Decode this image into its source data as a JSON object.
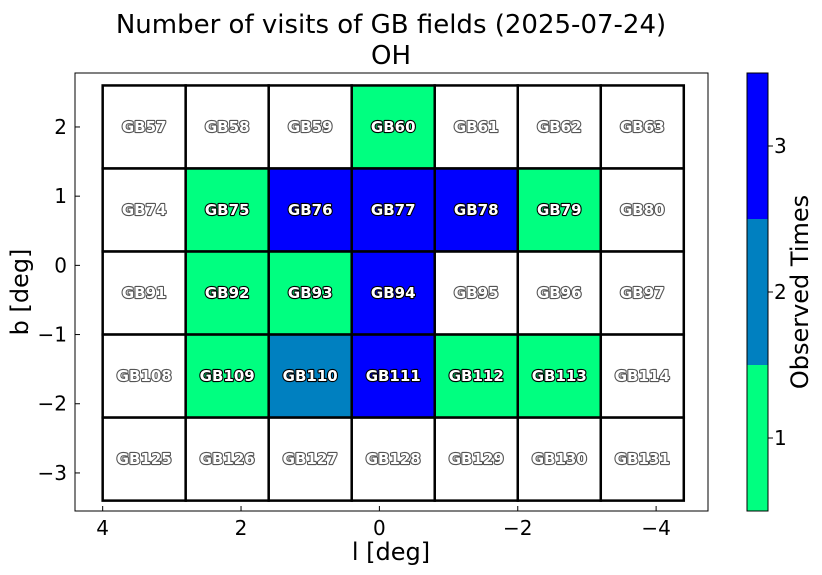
{
  "chart_data": {
    "type": "heatmap",
    "title": "Number of visits of GB fields (2025-07-24)",
    "subtitle": "OH",
    "xlabel": "l [deg]",
    "ylabel": "b [deg]",
    "xlim": [
      4.4,
      -4.75
    ],
    "ylim": [
      -3.55,
      2.78
    ],
    "x_reversed": true,
    "xticks": [
      4,
      2,
      0,
      -2,
      -4
    ],
    "xtick_labels": [
      "4",
      "2",
      "0",
      "−2",
      "−4"
    ],
    "yticks": [
      2,
      1,
      0,
      -1,
      -2,
      -3
    ],
    "ytick_labels": [
      "2",
      "1",
      "0",
      "−1",
      "−2",
      "−3"
    ],
    "grid": {
      "columns_l": [
        3.4,
        2.2,
        1.0,
        -0.2,
        -1.4,
        -2.6,
        -3.8
      ],
      "rows_b": [
        2.0,
        0.8,
        -0.4,
        -1.6,
        -2.8
      ],
      "cell_width_deg": 1.2,
      "cell_height_deg": 1.2
    },
    "fields": [
      {
        "name": "GB57",
        "l": 3.4,
        "b": 2.0,
        "visits": 0
      },
      {
        "name": "GB58",
        "l": 2.2,
        "b": 2.0,
        "visits": 0
      },
      {
        "name": "GB59",
        "l": 1.0,
        "b": 2.0,
        "visits": 0
      },
      {
        "name": "GB60",
        "l": -0.2,
        "b": 2.0,
        "visits": 1
      },
      {
        "name": "GB61",
        "l": -1.4,
        "b": 2.0,
        "visits": 0
      },
      {
        "name": "GB62",
        "l": -2.6,
        "b": 2.0,
        "visits": 0
      },
      {
        "name": "GB63",
        "l": -3.8,
        "b": 2.0,
        "visits": 0
      },
      {
        "name": "GB74",
        "l": 3.4,
        "b": 0.8,
        "visits": 0
      },
      {
        "name": "GB75",
        "l": 2.2,
        "b": 0.8,
        "visits": 1
      },
      {
        "name": "GB76",
        "l": 1.0,
        "b": 0.8,
        "visits": 3
      },
      {
        "name": "GB77",
        "l": -0.2,
        "b": 0.8,
        "visits": 3
      },
      {
        "name": "GB78",
        "l": -1.4,
        "b": 0.8,
        "visits": 3
      },
      {
        "name": "GB79",
        "l": -2.6,
        "b": 0.8,
        "visits": 1
      },
      {
        "name": "GB80",
        "l": -3.8,
        "b": 0.8,
        "visits": 0
      },
      {
        "name": "GB91",
        "l": 3.4,
        "b": -0.4,
        "visits": 0
      },
      {
        "name": "GB92",
        "l": 2.2,
        "b": -0.4,
        "visits": 1
      },
      {
        "name": "GB93",
        "l": 1.0,
        "b": -0.4,
        "visits": 1
      },
      {
        "name": "GB94",
        "l": -0.2,
        "b": -0.4,
        "visits": 3
      },
      {
        "name": "GB95",
        "l": -1.4,
        "b": -0.4,
        "visits": 0
      },
      {
        "name": "GB96",
        "l": -2.6,
        "b": -0.4,
        "visits": 0
      },
      {
        "name": "GB97",
        "l": -3.8,
        "b": -0.4,
        "visits": 0
      },
      {
        "name": "GB108",
        "l": 3.4,
        "b": -1.6,
        "visits": 0
      },
      {
        "name": "GB109",
        "l": 2.2,
        "b": -1.6,
        "visits": 1
      },
      {
        "name": "GB110",
        "l": 1.0,
        "b": -1.6,
        "visits": 2
      },
      {
        "name": "GB111",
        "l": -0.2,
        "b": -1.6,
        "visits": 3
      },
      {
        "name": "GB112",
        "l": -1.4,
        "b": -1.6,
        "visits": 1
      },
      {
        "name": "GB113",
        "l": -2.6,
        "b": -1.6,
        "visits": 1
      },
      {
        "name": "GB114",
        "l": -3.8,
        "b": -1.6,
        "visits": 0
      },
      {
        "name": "GB125",
        "l": 3.4,
        "b": -2.8,
        "visits": 0
      },
      {
        "name": "GB126",
        "l": 2.2,
        "b": -2.8,
        "visits": 0
      },
      {
        "name": "GB127",
        "l": 1.0,
        "b": -2.8,
        "visits": 0
      },
      {
        "name": "GB128",
        "l": -0.2,
        "b": -2.8,
        "visits": 0
      },
      {
        "name": "GB129",
        "l": -1.4,
        "b": -2.8,
        "visits": 0
      },
      {
        "name": "GB130",
        "l": -2.6,
        "b": -2.8,
        "visits": 0
      },
      {
        "name": "GB131",
        "l": -3.8,
        "b": -2.8,
        "visits": 0
      }
    ],
    "colorbar": {
      "label": "Observed Times",
      "levels": [
        {
          "value": 1,
          "label": "1",
          "color": "#00ff80"
        },
        {
          "value": 2,
          "label": "2",
          "color": "#0080c0"
        },
        {
          "value": 3,
          "label": "3",
          "color": "#0000ff"
        }
      ],
      "unobserved_color": "#ffffff"
    }
  }
}
